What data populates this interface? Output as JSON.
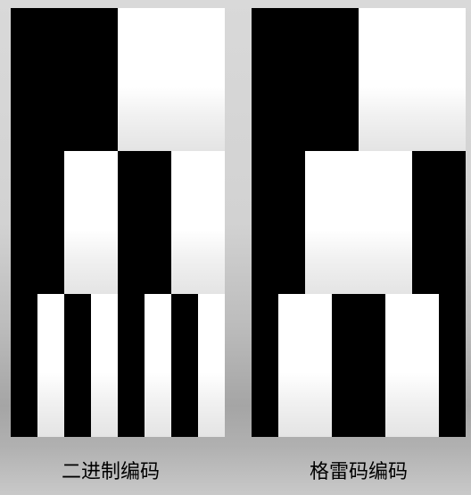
{
  "captions": {
    "binary": "二进制编码",
    "gray": "格雷码编码"
  },
  "patterns": {
    "binary": [
      [
        1,
        1,
        0,
        0
      ],
      [
        1,
        0,
        1,
        0
      ],
      [
        1,
        0,
        1,
        0,
        1,
        0,
        1,
        0
      ]
    ],
    "gray": [
      [
        1,
        1,
        0,
        0
      ],
      [
        1,
        0,
        0,
        1
      ],
      [
        1,
        0,
        0,
        1,
        1,
        0,
        0,
        1
      ]
    ]
  },
  "colors": {
    "bit_on": "#000000",
    "bit_off": "#ffffff"
  }
}
